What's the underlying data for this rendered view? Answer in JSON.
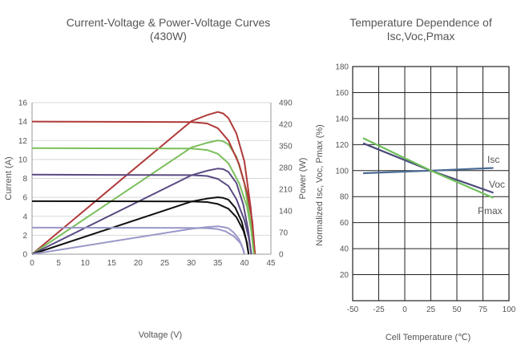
{
  "chart_data": [
    {
      "type": "line",
      "title": "Current-Voltage & Power-Voltage Curves (430W)",
      "xlabel": "Voltage (V)",
      "ylabel_left": "Current (A)",
      "ylabel_right": "Power (W)",
      "xlim": [
        0,
        45
      ],
      "ylim_left": [
        0,
        16
      ],
      "ylim_right": [
        0,
        490
      ],
      "x_ticks": [
        "0",
        "5",
        "10",
        "15",
        "20",
        "25",
        "30",
        "35",
        "40",
        "45"
      ],
      "y_ticks_left": [
        "0",
        "2",
        "4",
        "6",
        "8",
        "10",
        "12",
        "14",
        "16"
      ],
      "y_ticks_right": [
        "0",
        "70",
        "140",
        "210",
        "280",
        "350",
        "420",
        "490"
      ],
      "grid": "horizontal",
      "colors": [
        "#b03a3a",
        "#7bbf5a",
        "#5a4a82",
        "#111111",
        "#9a98c8"
      ],
      "iv_curves": [
        {
          "color": "#b03a3a",
          "points": [
            [
              0,
              14.0
            ],
            [
              30,
              13.95
            ],
            [
              33,
              13.8
            ],
            [
              35,
              13.3
            ],
            [
              37,
              12.0
            ],
            [
              39,
              9.5
            ],
            [
              40.5,
              6.5
            ],
            [
              41.5,
              3.5
            ],
            [
              42,
              0
            ]
          ]
        },
        {
          "color": "#7bbf5a",
          "points": [
            [
              0,
              11.2
            ],
            [
              30,
              11.15
            ],
            [
              33,
              11.0
            ],
            [
              35,
              10.6
            ],
            [
              37,
              9.6
            ],
            [
              39,
              7.5
            ],
            [
              40.5,
              5.0
            ],
            [
              41.3,
              2.5
            ],
            [
              41.8,
              0
            ]
          ]
        },
        {
          "color": "#5a4a82",
          "points": [
            [
              0,
              8.4
            ],
            [
              30,
              8.35
            ],
            [
              33,
              8.25
            ],
            [
              35,
              7.95
            ],
            [
              37,
              7.2
            ],
            [
              38.5,
              5.8
            ],
            [
              40,
              3.6
            ],
            [
              40.8,
              1.8
            ],
            [
              41.3,
              0
            ]
          ]
        },
        {
          "color": "#111111",
          "points": [
            [
              0,
              5.6
            ],
            [
              30,
              5.57
            ],
            [
              33,
              5.5
            ],
            [
              35,
              5.3
            ],
            [
              37,
              4.8
            ],
            [
              38.5,
              3.9
            ],
            [
              39.8,
              2.5
            ],
            [
              40.5,
              1.2
            ],
            [
              40.8,
              0
            ]
          ]
        },
        {
          "color": "#9a98c8",
          "points": [
            [
              0,
              2.8
            ],
            [
              30,
              2.78
            ],
            [
              33,
              2.74
            ],
            [
              35,
              2.64
            ],
            [
              36.5,
              2.4
            ],
            [
              38,
              1.9
            ],
            [
              39.2,
              1.2
            ],
            [
              39.8,
              0.5
            ],
            [
              40,
              0
            ]
          ]
        }
      ],
      "pv_curves": [
        {
          "color": "#b03a3a",
          "points": [
            [
              0,
              0
            ],
            [
              30,
              430
            ],
            [
              33,
              450
            ],
            [
              35,
              460
            ],
            [
              36,
              455
            ],
            [
              37,
              440
            ],
            [
              38.5,
              390
            ],
            [
              40,
              300
            ],
            [
              41.2,
              150
            ],
            [
              42,
              0
            ]
          ]
        },
        {
          "color": "#7bbf5a",
          "points": [
            [
              0,
              0
            ],
            [
              30,
              345
            ],
            [
              33,
              360
            ],
            [
              35,
              368
            ],
            [
              36,
              365
            ],
            [
              37,
              355
            ],
            [
              38.5,
              315
            ],
            [
              40,
              230
            ],
            [
              41.1,
              110
            ],
            [
              41.8,
              0
            ]
          ]
        },
        {
          "color": "#5a4a82",
          "points": [
            [
              0,
              0
            ],
            [
              30,
              255
            ],
            [
              33,
              270
            ],
            [
              35,
              277
            ],
            [
              36,
              275
            ],
            [
              37,
              266
            ],
            [
              38.5,
              230
            ],
            [
              39.8,
              160
            ],
            [
              40.7,
              80
            ],
            [
              41.3,
              0
            ]
          ]
        },
        {
          "color": "#111111",
          "points": [
            [
              0,
              0
            ],
            [
              30,
              170
            ],
            [
              33,
              180
            ],
            [
              35,
              184
            ],
            [
              36,
              182
            ],
            [
              37,
              176
            ],
            [
              38.3,
              150
            ],
            [
              39.5,
              105
            ],
            [
              40.3,
              50
            ],
            [
              40.8,
              0
            ]
          ]
        },
        {
          "color": "#9a98c8",
          "points": [
            [
              0,
              0
            ],
            [
              30,
              82
            ],
            [
              33,
              88
            ],
            [
              35,
              90
            ],
            [
              36,
              88
            ],
            [
              37,
              84
            ],
            [
              38,
              70
            ],
            [
              39,
              48
            ],
            [
              39.6,
              24
            ],
            [
              40,
              0
            ]
          ]
        }
      ]
    },
    {
      "type": "line",
      "title": "Temperature Dependence of Isc,Voc,Pmax",
      "xlabel": "Cell Temperature (℃)",
      "ylabel": "Normalized Isc, Voc, Pmax (%)",
      "xlim": [
        -50,
        100
      ],
      "ylim": [
        0,
        180
      ],
      "x_ticks": [
        "-50",
        "-25",
        "0",
        "25",
        "50",
        "75",
        "100"
      ],
      "y_ticks": [
        "20",
        "40",
        "60",
        "80",
        "100",
        "120",
        "140",
        "160",
        "180"
      ],
      "grid": "both",
      "series": [
        {
          "name": "Isc",
          "color": "#4a6a94",
          "points": [
            [
              -40,
              98
            ],
            [
              25,
              100
            ],
            [
              85,
              102
            ]
          ]
        },
        {
          "name": "Voc",
          "color": "#4a4a7a",
          "points": [
            [
              -40,
              121
            ],
            [
              25,
              100
            ],
            [
              85,
              83
            ]
          ]
        },
        {
          "name": "Pmax",
          "color": "#6fbf5a",
          "points": [
            [
              -40,
              125
            ],
            [
              25,
              100
            ],
            [
              85,
              79
            ]
          ]
        }
      ]
    }
  ]
}
